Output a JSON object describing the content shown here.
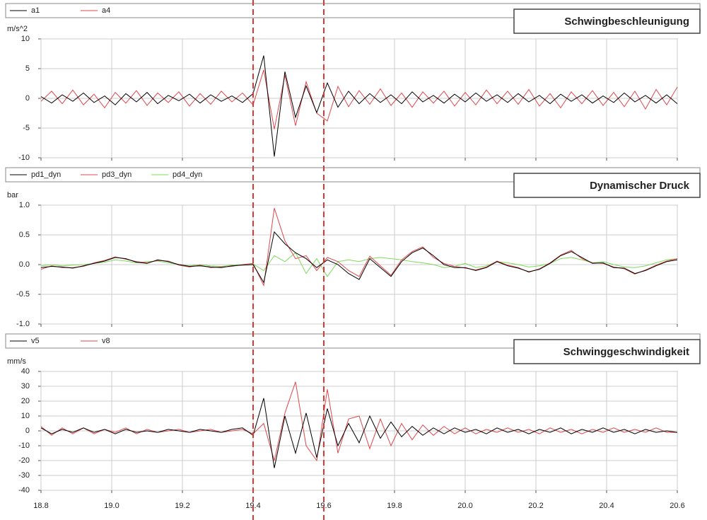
{
  "chart_data": [
    {
      "type": "line",
      "title": "Schwingbeschleunigung",
      "y_label": "m/s^2",
      "x": [
        18.8,
        18.83,
        18.86,
        18.89,
        18.92,
        18.95,
        18.98,
        19.01,
        19.04,
        19.07,
        19.1,
        19.13,
        19.16,
        19.19,
        19.22,
        19.25,
        19.28,
        19.31,
        19.34,
        19.37,
        19.4,
        19.43,
        19.46,
        19.49,
        19.52,
        19.55,
        19.58,
        19.61,
        19.64,
        19.67,
        19.7,
        19.73,
        19.76,
        19.79,
        19.82,
        19.85,
        19.88,
        19.91,
        19.94,
        19.97,
        20.0,
        20.03,
        20.06,
        20.09,
        20.12,
        20.15,
        20.18,
        20.21,
        20.24,
        20.27,
        20.3,
        20.33,
        20.36,
        20.39,
        20.42,
        20.45,
        20.48,
        20.51,
        20.54,
        20.57,
        20.6
      ],
      "series": [
        {
          "name": "a1",
          "color": "#000000",
          "values": [
            0.3,
            -0.8,
            0.6,
            -0.5,
            0.9,
            -0.7,
            0.4,
            -1.1,
            0.8,
            -0.6,
            1.0,
            -0.9,
            0.5,
            -0.4,
            0.7,
            -0.8,
            0.6,
            -0.5,
            0.4,
            -0.7,
            0.8,
            7.2,
            -9.8,
            4.5,
            -3.2,
            2.1,
            -2.4,
            2.6,
            -1.5,
            1.2,
            -0.9,
            0.8,
            -0.7,
            0.6,
            -0.9,
            1.1,
            -0.6,
            0.5,
            -0.8,
            0.7,
            -0.6,
            0.9,
            -0.5,
            0.6,
            -0.7,
            0.8,
            -0.6,
            0.5,
            -0.9,
            0.7,
            -0.5,
            0.6,
            -0.8,
            0.4,
            -0.7,
            0.9,
            -0.6,
            0.5,
            -0.8,
            0.6,
            -0.9
          ]
        },
        {
          "name": "a4",
          "color": "#e0474c",
          "values": [
            -0.5,
            1.2,
            -0.9,
            1.4,
            -1.1,
            0.7,
            -1.6,
            1.0,
            -0.8,
            1.3,
            -1.2,
            0.9,
            -0.7,
            1.1,
            -1.3,
            0.8,
            -1.0,
            1.2,
            -0.6,
            0.9,
            -1.1,
            4.8,
            -5.2,
            3.9,
            -4.6,
            2.8,
            -2.5,
            -3.8,
            2.0,
            -1.4,
            1.3,
            -1.0,
            1.6,
            -1.2,
            0.9,
            -1.5,
            1.1,
            -0.8,
            1.2,
            -1.3,
            1.0,
            -1.1,
            1.4,
            -0.9,
            1.2,
            -1.0,
            1.5,
            -1.3,
            0.8,
            -1.6,
            1.1,
            -0.9,
            1.3,
            -1.2,
            1.0,
            -1.4,
            1.2,
            -1.8,
            1.5,
            -1.1,
            1.9
          ]
        }
      ],
      "xlim": [
        18.8,
        20.6
      ],
      "ylim": [
        -10,
        10
      ],
      "yticks": [
        10,
        5,
        0,
        -5,
        -10
      ],
      "grid": true
    },
    {
      "type": "line",
      "title": "Dynamischer Druck",
      "y_label": "bar",
      "x": [
        18.8,
        18.83,
        18.86,
        18.89,
        18.92,
        18.95,
        18.98,
        19.01,
        19.04,
        19.07,
        19.1,
        19.13,
        19.16,
        19.19,
        19.22,
        19.25,
        19.28,
        19.31,
        19.34,
        19.37,
        19.4,
        19.43,
        19.46,
        19.49,
        19.52,
        19.55,
        19.58,
        19.61,
        19.64,
        19.67,
        19.7,
        19.73,
        19.76,
        19.79,
        19.82,
        19.85,
        19.88,
        19.91,
        19.94,
        19.97,
        20.0,
        20.03,
        20.06,
        20.09,
        20.12,
        20.15,
        20.18,
        20.21,
        20.24,
        20.27,
        20.3,
        20.33,
        20.36,
        20.39,
        20.42,
        20.45,
        20.48,
        20.51,
        20.54,
        20.57,
        20.6
      ],
      "series": [
        {
          "name": "pd1_dyn",
          "color": "#000000",
          "values": [
            -0.05,
            -0.03,
            -0.04,
            -0.06,
            -0.02,
            0.02,
            0.06,
            0.12,
            0.1,
            0.04,
            0.02,
            0.08,
            0.05,
            0.0,
            -0.03,
            -0.02,
            -0.04,
            -0.05,
            -0.02,
            -0.01,
            0.0,
            -0.3,
            0.55,
            0.35,
            0.2,
            0.1,
            -0.05,
            0.08,
            0.0,
            -0.15,
            -0.25,
            0.1,
            -0.05,
            -0.2,
            0.05,
            0.2,
            0.28,
            0.15,
            0.0,
            -0.05,
            -0.05,
            -0.1,
            -0.05,
            0.05,
            -0.02,
            -0.06,
            -0.12,
            -0.08,
            0.02,
            0.15,
            0.22,
            0.12,
            0.02,
            0.03,
            -0.05,
            -0.06,
            -0.15,
            -0.1,
            -0.02,
            0.05,
            0.08
          ]
        },
        {
          "name": "pd3_dyn",
          "color": "#e0474c",
          "values": [
            -0.08,
            -0.02,
            -0.05,
            -0.05,
            -0.03,
            0.03,
            0.07,
            0.13,
            0.09,
            0.05,
            0.03,
            0.07,
            0.06,
            -0.01,
            -0.04,
            -0.01,
            -0.05,
            -0.04,
            -0.03,
            0.0,
            0.02,
            -0.35,
            0.95,
            0.4,
            0.1,
            0.15,
            -0.1,
            0.12,
            0.05,
            -0.1,
            -0.2,
            0.14,
            -0.02,
            -0.18,
            0.08,
            0.22,
            0.3,
            0.12,
            0.02,
            -0.03,
            -0.06,
            -0.09,
            -0.04,
            0.06,
            -0.01,
            -0.05,
            -0.13,
            -0.07,
            0.03,
            0.16,
            0.24,
            0.1,
            0.03,
            0.02,
            -0.04,
            -0.07,
            -0.16,
            -0.09,
            -0.01,
            0.06,
            0.1
          ]
        },
        {
          "name": "pd4_dyn",
          "color": "#7ddc5a",
          "values": [
            -0.02,
            0.0,
            -0.02,
            -0.01,
            0.0,
            0.02,
            0.04,
            0.08,
            0.06,
            0.03,
            0.05,
            0.06,
            0.03,
            0.0,
            -0.02,
            0.0,
            -0.02,
            -0.03,
            -0.01,
            0.0,
            0.01,
            -0.1,
            0.15,
            0.05,
            0.2,
            -0.15,
            0.1,
            -0.2,
            0.05,
            0.08,
            0.05,
            0.1,
            0.12,
            0.1,
            0.08,
            0.05,
            0.03,
            0.0,
            -0.05,
            -0.03,
            0.02,
            -0.05,
            -0.02,
            0.05,
            0.03,
            0.0,
            -0.04,
            -0.02,
            0.02,
            0.1,
            0.12,
            0.08,
            0.03,
            0.05,
            0.0,
            -0.04,
            -0.05,
            -0.02,
            0.03,
            0.08,
            0.1
          ]
        }
      ],
      "xlim": [
        18.8,
        20.6
      ],
      "ylim": [
        -1,
        1
      ],
      "yticks": [
        {
          "value": 1,
          "label": "1.0"
        },
        0.5,
        {
          "value": 0,
          "label": "0.0"
        },
        -0.5,
        {
          "value": -1,
          "label": "-1.0"
        }
      ],
      "grid": true
    },
    {
      "type": "line",
      "title": "Schwinggeschwindigkeit",
      "y_label": "mm/s",
      "x": [
        18.8,
        18.83,
        18.86,
        18.89,
        18.92,
        18.95,
        18.98,
        19.01,
        19.04,
        19.07,
        19.1,
        19.13,
        19.16,
        19.19,
        19.22,
        19.25,
        19.28,
        19.31,
        19.34,
        19.37,
        19.4,
        19.43,
        19.46,
        19.49,
        19.52,
        19.55,
        19.58,
        19.61,
        19.64,
        19.67,
        19.7,
        19.73,
        19.76,
        19.79,
        19.82,
        19.85,
        19.88,
        19.91,
        19.94,
        19.97,
        20.0,
        20.03,
        20.06,
        20.09,
        20.12,
        20.15,
        20.18,
        20.21,
        20.24,
        20.27,
        20.3,
        20.33,
        20.36,
        20.39,
        20.42,
        20.45,
        20.48,
        20.51,
        20.54,
        20.57,
        20.6
      ],
      "series": [
        {
          "name": "v5",
          "color": "#000000",
          "values": [
            2,
            -2,
            1,
            -1,
            2,
            -1,
            1,
            -2,
            1,
            -1,
            0,
            -1,
            1,
            0,
            -1,
            1,
            0,
            -1,
            1,
            2,
            -3,
            22,
            -25,
            10,
            -15,
            12,
            -18,
            15,
            -10,
            5,
            -8,
            10,
            -5,
            6,
            -4,
            3,
            -3,
            2,
            -2,
            2,
            -1,
            1,
            -2,
            2,
            -1,
            1,
            -2,
            1,
            -1,
            2,
            -2,
            1,
            -1,
            2,
            -1,
            1,
            -2,
            1,
            -1,
            0,
            -1
          ]
        },
        {
          "name": "v8",
          "color": "#e0474c",
          "values": [
            3,
            -3,
            2,
            -2,
            2,
            -2,
            1,
            -1,
            2,
            -2,
            1,
            -1,
            0,
            1,
            -1,
            0,
            1,
            -1,
            0,
            1,
            -2,
            5,
            -20,
            12,
            33,
            -10,
            -20,
            28,
            -15,
            8,
            10,
            -12,
            8,
            -10,
            5,
            -6,
            4,
            -3,
            3,
            -2,
            2,
            -2,
            1,
            -1,
            2,
            -1,
            1,
            -2,
            2,
            -1,
            1,
            -2,
            1,
            -1,
            2,
            -1,
            1,
            -1,
            2,
            -1,
            -1
          ]
        }
      ],
      "xlim": [
        18.8,
        20.6
      ],
      "ylim": [
        -40,
        40
      ],
      "yticks": [
        40,
        30,
        20,
        10,
        0,
        -10,
        -20,
        -30,
        -40
      ],
      "xticks": [
        18.8,
        {
          "value": 19,
          "label": "19.0"
        },
        19.2,
        19.4,
        19.6,
        19.8,
        {
          "value": 20,
          "label": "20.0"
        },
        20.2,
        20.4,
        20.6
      ],
      "grid": true,
      "vlines": [
        19.4,
        19.6
      ],
      "vline_color": "#d63a32"
    }
  ]
}
